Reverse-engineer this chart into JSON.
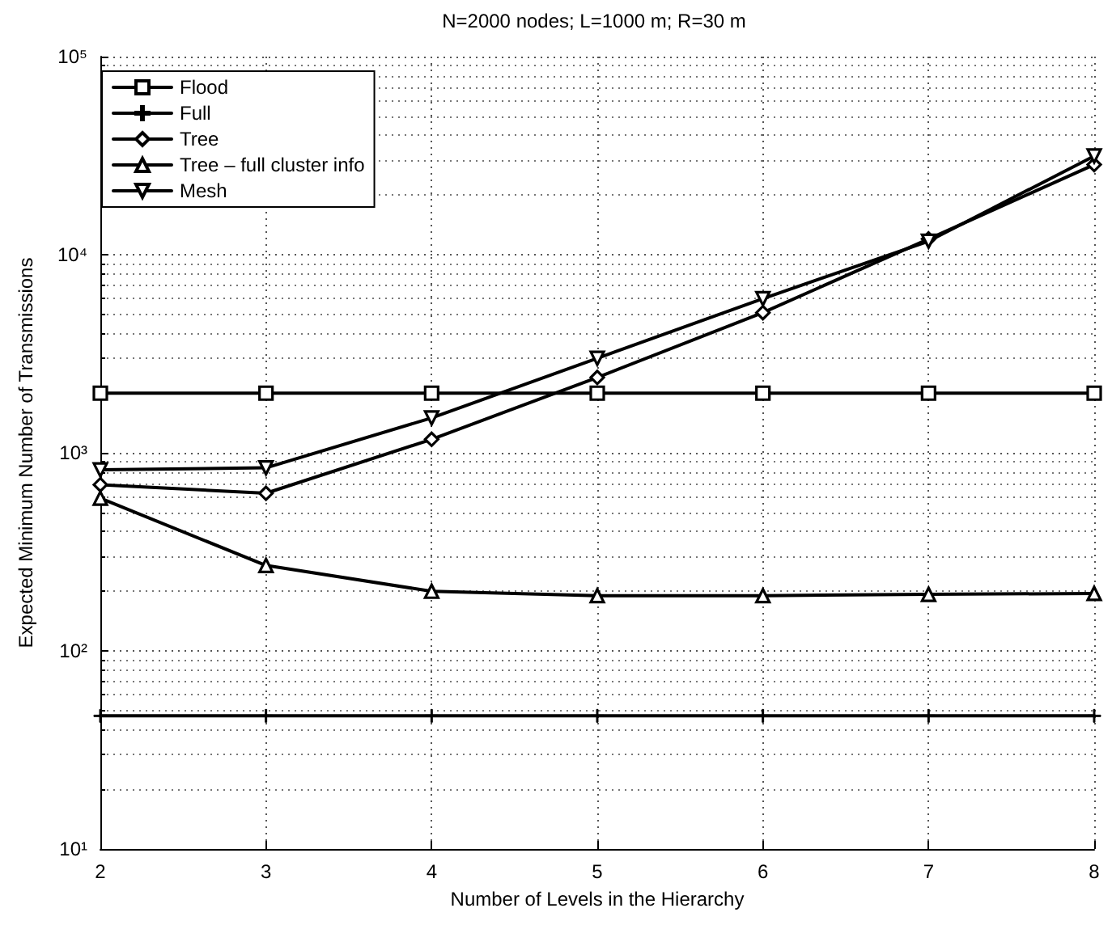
{
  "chart_data": {
    "type": "line",
    "title": "N=2000 nodes; L=1000 m; R=30 m",
    "xlabel": "Number of Levels in the Hierarchy",
    "ylabel": "Expected Minimum Number of Transmissions",
    "x": [
      2,
      3,
      4,
      5,
      6,
      7,
      8
    ],
    "series": [
      {
        "name": "Flood",
        "color": "#000000",
        "marker": "square",
        "values": [
          2000,
          2000,
          2000,
          2000,
          2000,
          2000,
          2000
        ]
      },
      {
        "name": "Full",
        "color": "#000000",
        "marker": "cross",
        "values": [
          47,
          47,
          47,
          47,
          47,
          47,
          47
        ]
      },
      {
        "name": "Tree",
        "color": "#000000",
        "marker": "diamond",
        "values": [
          690,
          625,
          1170,
          2400,
          5100,
          12000,
          28500
        ]
      },
      {
        "name": "Tree – full cluster info",
        "color": "#000000",
        "marker": "triangle",
        "values": [
          590,
          270,
          200,
          190,
          190,
          193,
          195
        ]
      },
      {
        "name": "Mesh",
        "color": "#000000",
        "marker": "triangle-down",
        "values": [
          820,
          840,
          1500,
          3000,
          6000,
          11700,
          31500
        ]
      }
    ],
    "log": "y",
    "grid": true,
    "legend": "top left",
    "line_style": "solid",
    "xlim": [
      2,
      8
    ],
    "xticks": [
      2,
      3,
      4,
      5,
      6,
      7,
      8
    ],
    "ylim": [
      10,
      100000
    ],
    "yticks": [
      {
        "value": 10,
        "label": "10¹"
      },
      {
        "value": 100,
        "label": "10²"
      },
      {
        "value": 1000,
        "label": "10³"
      },
      {
        "value": 10000,
        "label": "10⁴"
      },
      {
        "value": 100000,
        "label": "10⁵"
      }
    ]
  }
}
